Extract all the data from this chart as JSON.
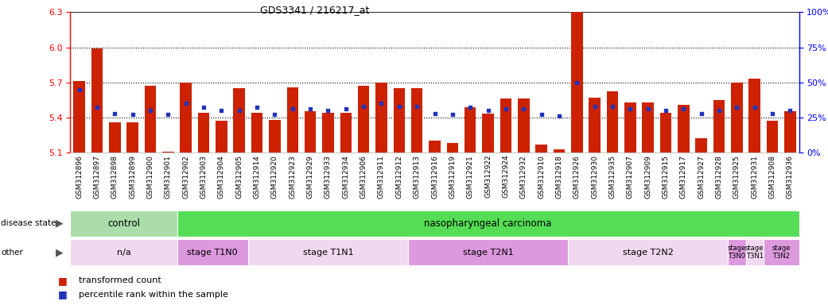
{
  "title": "GDS3341 / 216217_at",
  "samples": [
    "GSM312896",
    "GSM312897",
    "GSM312898",
    "GSM312899",
    "GSM312900",
    "GSM312901",
    "GSM312902",
    "GSM312903",
    "GSM312904",
    "GSM312905",
    "GSM312914",
    "GSM312920",
    "GSM312923",
    "GSM312929",
    "GSM312933",
    "GSM312934",
    "GSM312906",
    "GSM312911",
    "GSM312912",
    "GSM312913",
    "GSM312916",
    "GSM312919",
    "GSM312921",
    "GSM312922",
    "GSM312924",
    "GSM312932",
    "GSM312910",
    "GSM312918",
    "GSM312926",
    "GSM312930",
    "GSM312935",
    "GSM312907",
    "GSM312909",
    "GSM312915",
    "GSM312917",
    "GSM312927",
    "GSM312928",
    "GSM312925",
    "GSM312931",
    "GSM312908",
    "GSM312936"
  ],
  "bar_values": [
    5.71,
    5.99,
    5.36,
    5.36,
    5.67,
    5.11,
    5.7,
    5.44,
    5.37,
    5.65,
    5.44,
    5.38,
    5.66,
    5.45,
    5.44,
    5.44,
    5.67,
    5.7,
    5.65,
    5.65,
    5.2,
    5.18,
    5.49,
    5.43,
    5.56,
    5.56,
    5.17,
    5.13,
    6.43,
    5.57,
    5.62,
    5.53,
    5.53,
    5.44,
    5.51,
    5.22,
    5.55,
    5.7,
    5.73,
    5.37,
    5.45
  ],
  "percentile_values": [
    45,
    32,
    28,
    27,
    30,
    27,
    35,
    32,
    30,
    30,
    32,
    27,
    31,
    31,
    30,
    31,
    33,
    35,
    33,
    33,
    28,
    27,
    32,
    30,
    31,
    31,
    27,
    26,
    50,
    33,
    33,
    31,
    31,
    30,
    31,
    28,
    30,
    32,
    32,
    28,
    30
  ],
  "ylim_left": [
    5.1,
    6.3
  ],
  "ylim_right": [
    0,
    100
  ],
  "yticks_left": [
    5.1,
    5.4,
    5.7,
    6.0,
    6.3
  ],
  "yticks_right": [
    0,
    25,
    50,
    75,
    100
  ],
  "ytick_labels_right": [
    "0%",
    "25%",
    "50%",
    "75%",
    "100%"
  ],
  "bar_color": "#cc2200",
  "dot_color": "#2233bb",
  "dotted_lines": [
    5.4,
    5.7,
    6.0
  ],
  "disease_state_groups": [
    {
      "label": "control",
      "start": 0,
      "end": 6,
      "color": "#aaddaa"
    },
    {
      "label": "nasopharyngeal carcinoma",
      "start": 6,
      "end": 41,
      "color": "#55dd55"
    }
  ],
  "other_groups": [
    {
      "label": "n/a",
      "start": 0,
      "end": 6,
      "color": "#f0d8f0"
    },
    {
      "label": "stage T1N0",
      "start": 6,
      "end": 10,
      "color": "#dd99dd"
    },
    {
      "label": "stage T1N1",
      "start": 10,
      "end": 19,
      "color": "#f0d8f0"
    },
    {
      "label": "stage T2N1",
      "start": 19,
      "end": 28,
      "color": "#dd99dd"
    },
    {
      "label": "stage T2N2",
      "start": 28,
      "end": 37,
      "color": "#f0d8f0"
    },
    {
      "label": "stage\nT3N0",
      "start": 37,
      "end": 38,
      "color": "#dd99dd"
    },
    {
      "label": "stage\nT3N1",
      "start": 38,
      "end": 39,
      "color": "#f0d8f0"
    },
    {
      "label": "stage\nT3N2",
      "start": 39,
      "end": 41,
      "color": "#dd99dd"
    }
  ],
  "bar_bottom": 5.1
}
